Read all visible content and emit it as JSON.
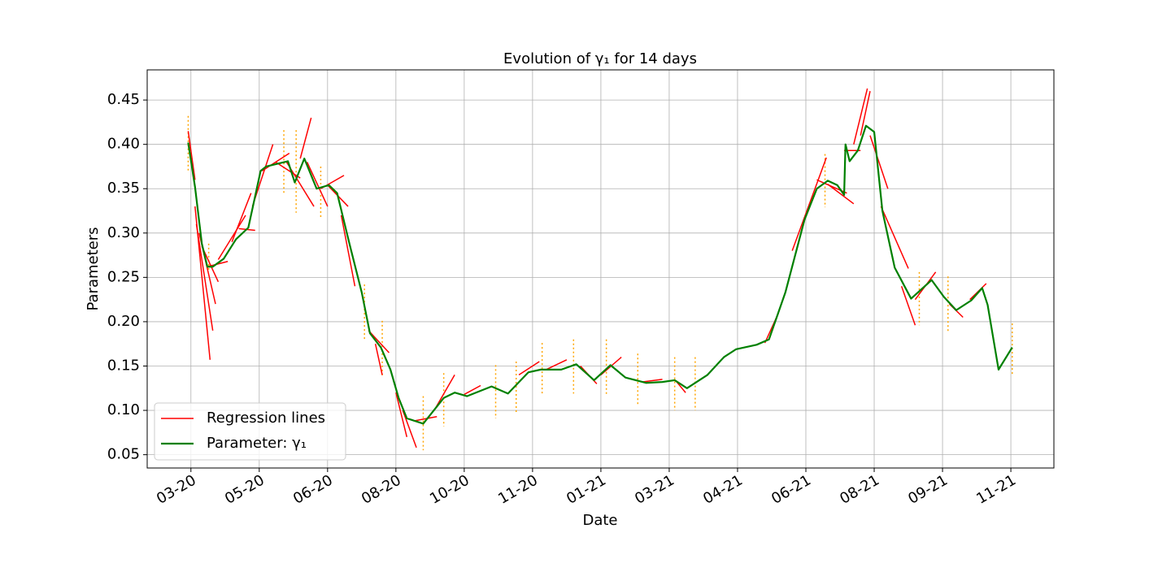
{
  "chart_data": {
    "type": "line",
    "title": "Evolution of γ₁ for 14 days",
    "x_label": "Date",
    "y_label": "Parameters",
    "x": [
      -2,
      3,
      8,
      12,
      16,
      24,
      33,
      42,
      51,
      55,
      71,
      76,
      83,
      92,
      101,
      107,
      116,
      125,
      131,
      139,
      146,
      152,
      158,
      170,
      185,
      193,
      202,
      220,
      232,
      247,
      256,
      271,
      282,
      295,
      307,
      318,
      333,
      345,
      354,
      363,
      378,
      390,
      399,
      414,
      423,
      435,
      449,
      458,
      466,
      473,
      478,
      479,
      482,
      488,
      494,
      500,
      506,
      515,
      527,
      542,
      551,
      560,
      571,
      579,
      583,
      591,
      601
    ],
    "series": [
      {
        "name": "Parameter: γ₁",
        "color": "#008000",
        "values": [
          0.402,
          0.352,
          0.288,
          0.262,
          0.262,
          0.271,
          0.293,
          0.306,
          0.37,
          0.375,
          0.381,
          0.357,
          0.384,
          0.35,
          0.354,
          0.345,
          0.288,
          0.233,
          0.187,
          0.171,
          0.146,
          0.114,
          0.091,
          0.085,
          0.114,
          0.12,
          0.116,
          0.127,
          0.119,
          0.143,
          0.146,
          0.146,
          0.152,
          0.134,
          0.151,
          0.137,
          0.131,
          0.132,
          0.134,
          0.125,
          0.14,
          0.16,
          0.169,
          0.174,
          0.18,
          0.233,
          0.315,
          0.35,
          0.359,
          0.354,
          0.343,
          0.4,
          0.381,
          0.393,
          0.421,
          0.414,
          0.325,
          0.261,
          0.226,
          0.247,
          0.228,
          0.213,
          0.224,
          0.238,
          0.219,
          0.146,
          0.171
        ]
      }
    ],
    "regression": {
      "name": "Regression lines",
      "color": "#ff0000",
      "segments": [
        {
          "x": [
            -2,
            3
          ],
          "y": [
            0.415,
            0.36
          ]
        },
        {
          "x": [
            3,
            14
          ],
          "y": [
            0.33,
            0.157
          ]
        },
        {
          "x": [
            4,
            16
          ],
          "y": [
            0.31,
            0.19
          ]
        },
        {
          "x": [
            6,
            18
          ],
          "y": [
            0.3,
            0.22
          ]
        },
        {
          "x": [
            8,
            20
          ],
          "y": [
            0.285,
            0.245
          ]
        },
        {
          "x": [
            12,
            27
          ],
          "y": [
            0.262,
            0.268
          ]
        },
        {
          "x": [
            20,
            40
          ],
          "y": [
            0.27,
            0.32
          ]
        },
        {
          "x": [
            30,
            44
          ],
          "y": [
            0.29,
            0.345
          ]
        },
        {
          "x": [
            35,
            47
          ],
          "y": [
            0.305,
            0.303
          ]
        },
        {
          "x": [
            45,
            60
          ],
          "y": [
            0.33,
            0.4
          ]
        },
        {
          "x": [
            52,
            72
          ],
          "y": [
            0.37,
            0.39
          ]
        },
        {
          "x": [
            62,
            80
          ],
          "y": [
            0.38,
            0.362
          ]
        },
        {
          "x": [
            70,
            90
          ],
          "y": [
            0.38,
            0.33
          ]
        },
        {
          "x": [
            80,
            88
          ],
          "y": [
            0.384,
            0.43
          ]
        },
        {
          "x": [
            85,
            100
          ],
          "y": [
            0.38,
            0.33
          ]
        },
        {
          "x": [
            95,
            112
          ],
          "y": [
            0.35,
            0.365
          ]
        },
        {
          "x": [
            100,
            115
          ],
          "y": [
            0.354,
            0.33
          ]
        },
        {
          "x": [
            110,
            120
          ],
          "y": [
            0.32,
            0.24
          ]
        },
        {
          "x": [
            130,
            145
          ],
          "y": [
            0.19,
            0.165
          ]
        },
        {
          "x": [
            135,
            140
          ],
          "y": [
            0.175,
            0.14
          ]
        },
        {
          "x": [
            150,
            158
          ],
          "y": [
            0.12,
            0.07
          ]
        },
        {
          "x": [
            155,
            165
          ],
          "y": [
            0.1,
            0.058
          ]
        },
        {
          "x": [
            163,
            180
          ],
          "y": [
            0.088,
            0.093
          ]
        },
        {
          "x": [
            178,
            193
          ],
          "y": [
            0.1,
            0.14
          ]
        },
        {
          "x": [
            200,
            212
          ],
          "y": [
            0.118,
            0.128
          ]
        },
        {
          "x": [
            240,
            255
          ],
          "y": [
            0.14,
            0.155
          ]
        },
        {
          "x": [
            260,
            275
          ],
          "y": [
            0.146,
            0.157
          ]
        },
        {
          "x": [
            285,
            297
          ],
          "y": [
            0.15,
            0.13
          ]
        },
        {
          "x": [
            300,
            315
          ],
          "y": [
            0.14,
            0.16
          ]
        },
        {
          "x": [
            330,
            345
          ],
          "y": [
            0.132,
            0.135
          ]
        },
        {
          "x": [
            355,
            362
          ],
          "y": [
            0.133,
            0.12
          ]
        },
        {
          "x": [
            420,
            430
          ],
          "y": [
            0.176,
            0.21
          ]
        },
        {
          "x": [
            440,
            465
          ],
          "y": [
            0.28,
            0.385
          ]
        },
        {
          "x": [
            458,
            480
          ],
          "y": [
            0.36,
            0.345
          ]
        },
        {
          "x": [
            466,
            485
          ],
          "y": [
            0.355,
            0.333
          ]
        },
        {
          "x": [
            478,
            490
          ],
          "y": [
            0.393,
            0.393
          ]
        },
        {
          "x": [
            485,
            495
          ],
          "y": [
            0.4,
            0.463
          ]
        },
        {
          "x": [
            490,
            497
          ],
          "y": [
            0.41,
            0.46
          ]
        },
        {
          "x": [
            497,
            510
          ],
          "y": [
            0.41,
            0.35
          ]
        },
        {
          "x": [
            505,
            525
          ],
          "y": [
            0.33,
            0.26
          ]
        },
        {
          "x": [
            520,
            530
          ],
          "y": [
            0.24,
            0.196
          ]
        },
        {
          "x": [
            530,
            545
          ],
          "y": [
            0.225,
            0.256
          ]
        },
        {
          "x": [
            555,
            565
          ],
          "y": [
            0.22,
            0.205
          ]
        },
        {
          "x": [
            570,
            582
          ],
          "y": [
            0.225,
            0.243
          ]
        }
      ]
    },
    "intervals": {
      "color": "#ffa500",
      "items": [
        {
          "x": -2,
          "y": [
            0.432,
            0.37
          ]
        },
        {
          "x": 13,
          "y": [
            0.288,
            0.256
          ]
        },
        {
          "x": 68,
          "y": [
            0.416,
            0.343
          ]
        },
        {
          "x": 77,
          "y": [
            0.416,
            0.323
          ]
        },
        {
          "x": 95,
          "y": [
            0.375,
            0.317
          ]
        },
        {
          "x": 127,
          "y": [
            0.242,
            0.178
          ]
        },
        {
          "x": 140,
          "y": [
            0.201,
            0.137
          ]
        },
        {
          "x": 170,
          "y": [
            0.116,
            0.055
          ]
        },
        {
          "x": 185,
          "y": [
            0.142,
            0.082
          ]
        },
        {
          "x": 223,
          "y": [
            0.151,
            0.091
          ]
        },
        {
          "x": 238,
          "y": [
            0.155,
            0.096
          ]
        },
        {
          "x": 257,
          "y": [
            0.176,
            0.117
          ]
        },
        {
          "x": 280,
          "y": [
            0.18,
            0.119
          ]
        },
        {
          "x": 304,
          "y": [
            0.18,
            0.116
          ]
        },
        {
          "x": 327,
          "y": [
            0.164,
            0.105
          ]
        },
        {
          "x": 354,
          "y": [
            0.16,
            0.1
          ]
        },
        {
          "x": 369,
          "y": [
            0.16,
            0.1
          ]
        },
        {
          "x": 464,
          "y": [
            0.389,
            0.329
          ]
        },
        {
          "x": 533,
          "y": [
            0.256,
            0.196
          ]
        },
        {
          "x": 554,
          "y": [
            0.251,
            0.189
          ]
        },
        {
          "x": 601,
          "y": [
            0.198,
            0.14
          ]
        }
      ]
    },
    "xlim": [
      -32,
      631.5
    ],
    "xticks": [
      {
        "value": 0,
        "label": "03-20"
      },
      {
        "value": 50,
        "label": "05-20"
      },
      {
        "value": 100,
        "label": "06-20"
      },
      {
        "value": 150,
        "label": "08-20"
      },
      {
        "value": 200,
        "label": "10-20"
      },
      {
        "value": 250,
        "label": "11-20"
      },
      {
        "value": 300,
        "label": "01-21"
      },
      {
        "value": 350,
        "label": "03-21"
      },
      {
        "value": 400,
        "label": "04-21"
      },
      {
        "value": 450,
        "label": "06-21"
      },
      {
        "value": 500,
        "label": "08-21"
      },
      {
        "value": 550,
        "label": "09-21"
      },
      {
        "value": 600,
        "label": "11-21"
      }
    ],
    "ylim": [
      0.035,
      0.484
    ],
    "yticks": [
      {
        "value": 0.05,
        "label": "0.05"
      },
      {
        "value": 0.1,
        "label": "0.10"
      },
      {
        "value": 0.15,
        "label": "0.15"
      },
      {
        "value": 0.2,
        "label": "0.20"
      },
      {
        "value": 0.25,
        "label": "0.25"
      },
      {
        "value": 0.3,
        "label": "0.30"
      },
      {
        "value": 0.35,
        "label": "0.35"
      },
      {
        "value": 0.4,
        "label": "0.40"
      },
      {
        "value": 0.45,
        "label": "0.45"
      }
    ],
    "grid": true,
    "legend": "lower left"
  }
}
